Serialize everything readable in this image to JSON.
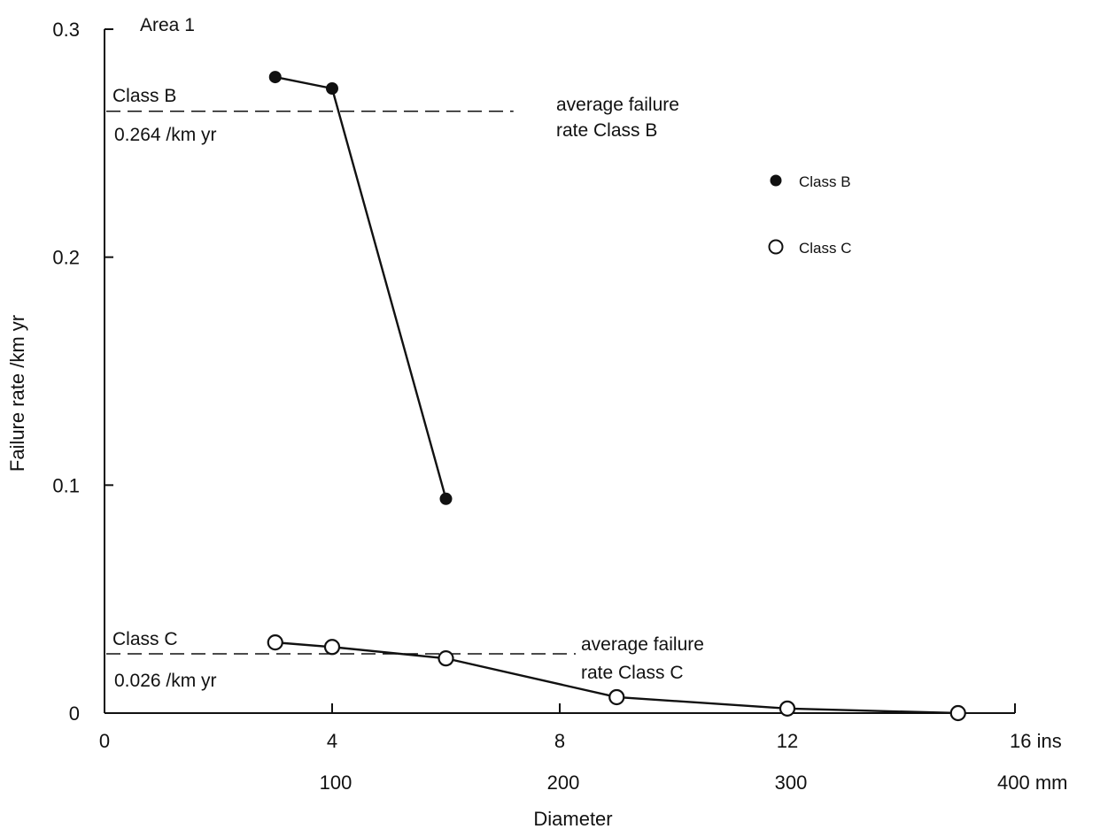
{
  "chart_data": {
    "type": "line",
    "title": "Area 1",
    "xlabel": "Diameter",
    "ylabel": "Failure rate /km yr",
    "xlim": [
      0,
      16
    ],
    "ylim": [
      0,
      0.3
    ],
    "x_ticks": [
      {
        "value": 0,
        "label": "0"
      },
      {
        "value": 4,
        "label": "4"
      },
      {
        "value": 8,
        "label": "8"
      },
      {
        "value": 12,
        "label": "12"
      },
      {
        "value": 16,
        "label": "16 ins"
      }
    ],
    "x_ticks_secondary": [
      {
        "value": 100,
        "label": "100"
      },
      {
        "value": 200,
        "label": "200"
      },
      {
        "value": 300,
        "label": "300"
      },
      {
        "value": 400,
        "label": "400 mm"
      }
    ],
    "y_ticks": [
      {
        "value": 0,
        "label": "0"
      },
      {
        "value": 0.1,
        "label": "0.1"
      },
      {
        "value": 0.2,
        "label": "0.2"
      },
      {
        "value": 0.3,
        "label": "0.3"
      }
    ],
    "series": [
      {
        "name": "Class B",
        "marker": "filled-circle",
        "color": "#111111",
        "x": [
          3,
          4,
          6
        ],
        "y": [
          0.279,
          0.274,
          0.094
        ]
      },
      {
        "name": "Class C",
        "marker": "open-circle",
        "color": "#111111",
        "x": [
          3,
          4,
          6,
          9,
          12,
          15
        ],
        "y": [
          0.031,
          0.029,
          0.024,
          0.007,
          0.002,
          0.0
        ]
      }
    ],
    "reference_lines": [
      {
        "series": "Class B",
        "y": 0.264,
        "x_range": [
          0,
          7
        ],
        "label_top": "Class B",
        "label_bottom": "0.264 /km yr",
        "note_line1": "average failure",
        "note_line2": "rate Class B"
      },
      {
        "series": "Class C",
        "y": 0.026,
        "x_range": [
          0,
          8
        ],
        "label_top": "Class C",
        "label_bottom": "0.026 /km yr",
        "note_line1": "average failure",
        "note_line2": "rate Class C"
      }
    ],
    "legend": {
      "position": "top-right",
      "entries": [
        {
          "label": "Class B",
          "marker": "filled-circle"
        },
        {
          "label": "Class C",
          "marker": "open-circle"
        }
      ]
    },
    "grid": false
  }
}
